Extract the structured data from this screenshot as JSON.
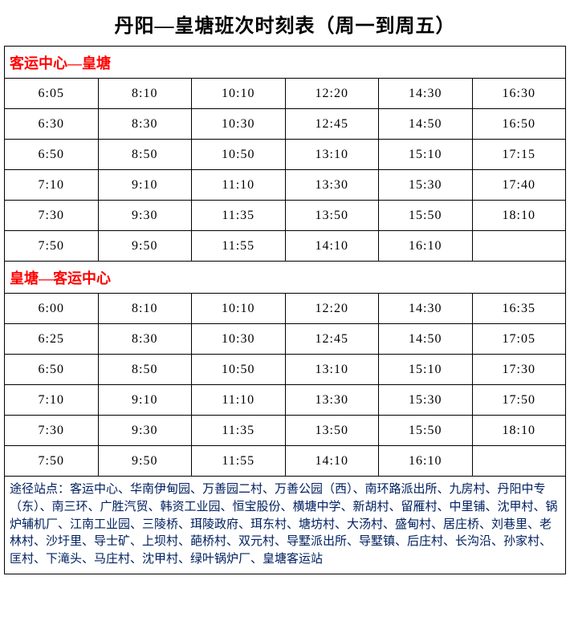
{
  "title": "丹阳—皇塘班次时刻表（周一到周五）",
  "colors": {
    "header_text": "#ff0000",
    "footer_text": "#002060",
    "border": "#000000",
    "background": "#ffffff"
  },
  "section1": {
    "header": "客运中心—皇塘",
    "rows": [
      [
        "6:05",
        "8:10",
        "10:10",
        "12:20",
        "14:30",
        "16:30"
      ],
      [
        "6:30",
        "8:30",
        "10:30",
        "12:45",
        "14:50",
        "16:50"
      ],
      [
        "6:50",
        "8:50",
        "10:50",
        "13:10",
        "15:10",
        "17:15"
      ],
      [
        "7:10",
        "9:10",
        "11:10",
        "13:30",
        "15:30",
        "17:40"
      ],
      [
        "7:30",
        "9:30",
        "11:35",
        "13:50",
        "15:50",
        "18:10"
      ],
      [
        "7:50",
        "9:50",
        "11:55",
        "14:10",
        "16:10",
        ""
      ]
    ]
  },
  "section2": {
    "header": "皇塘—客运中心",
    "rows": [
      [
        "6:00",
        "8:10",
        "10:10",
        "12:20",
        "14:30",
        "16:35"
      ],
      [
        "6:25",
        "8:30",
        "10:30",
        "12:45",
        "14:50",
        "17:05"
      ],
      [
        "6:50",
        "8:50",
        "10:50",
        "13:10",
        "15:10",
        "17:30"
      ],
      [
        "7:10",
        "9:10",
        "11:10",
        "13:30",
        "15:30",
        "17:50"
      ],
      [
        "7:30",
        "9:30",
        "11:35",
        "13:50",
        "15:50",
        "18:10"
      ],
      [
        "7:50",
        "9:50",
        "11:55",
        "14:10",
        "16:10",
        ""
      ]
    ]
  },
  "footer_note": "途径站点：客运中心、华南伊甸园、万善园二村、万善公园（西）、南环路派出所、九房村、丹阳中专（东）、南三环、广胜汽贸、韩资工业园、恒宝股份、横塘中学、新胡村、留雁村、中里铺、沈甲村、锅炉辅机厂、江南工业园、三陵桥、珥陵政府、珥东村、塘坊村、大汤村、盛甸村、居庄桥、刘巷里、老林村、沙圩里、导士矿、上坝村、葩桥村、双元村、导墅派出所、导墅镇、后庄村、长沟沿、孙家村、匡村、下滝头、马庄村、沈甲村、绿叶锅炉厂、皇塘客运站"
}
